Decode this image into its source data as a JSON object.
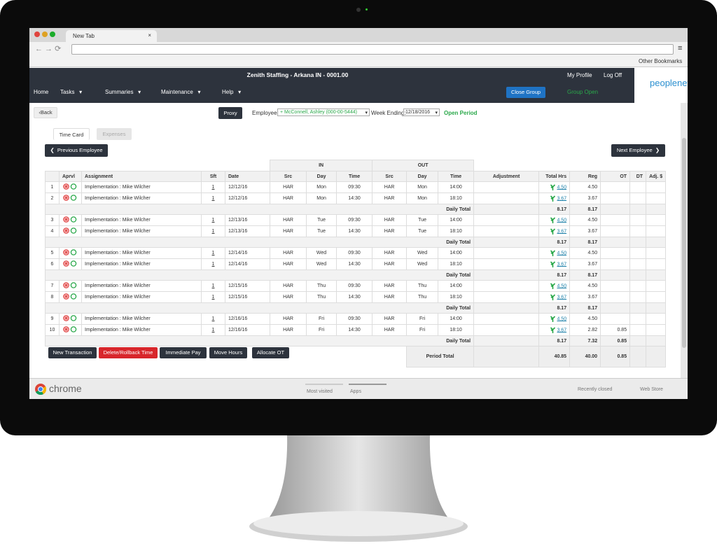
{
  "browser": {
    "tab": "New Tab",
    "bookmark": "Other Bookmarks",
    "footer": {
      "brand": "chrome",
      "most_visited": "Most visited",
      "apps": "Apps",
      "recently_closed": "Recently closed",
      "web_store": "Web Store"
    }
  },
  "header": {
    "title": "Zenith Staffing - Arkana IN - 0001.00",
    "my_profile": "My Profile",
    "log_off": "Log Off",
    "logo": "peoplenet",
    "nav": [
      "Home",
      "Tasks",
      "Summaries",
      "Maintenance",
      "Help"
    ],
    "close_group": "Close Group",
    "group_status": "Group Open"
  },
  "toolbar": {
    "back": "Back",
    "proxy": "Proxy",
    "employee_label": "Employee:",
    "employee": "McConnell, Ashley (000-00-5444)",
    "week_label": "Week Ending:",
    "week": "12/18/2016",
    "period_status": "Open Period"
  },
  "tabs": [
    "Time Card",
    "Expenses"
  ],
  "prev_employee": "Previous Employee",
  "next_employee": "Next Employee",
  "table": {
    "groups": [
      "IN",
      "OUT"
    ],
    "columns": [
      "Aprvl",
      "Assignment",
      "Sft",
      "Date",
      "Src",
      "Day",
      "Time",
      "Src",
      "Day",
      "Time",
      "Adjustment",
      "Total Hrs",
      "Reg",
      "OT",
      "DT",
      "Adj. $"
    ],
    "daily_total_label": "Daily Total",
    "days": [
      {
        "rows": [
          {
            "num": "1",
            "assignment": "Implementation : Mike Wilcher",
            "sft": "1",
            "date": "12/12/16",
            "in_src": "HAR",
            "in_day": "Mon",
            "in_time": "09:30",
            "out_src": "HAR",
            "out_day": "Mon",
            "out_time": "14:00",
            "total": "4.50",
            "reg": "4.50"
          },
          {
            "num": "2",
            "assignment": "Implementation : Mike Wilcher",
            "sft": "1",
            "date": "12/12/16",
            "in_src": "HAR",
            "in_day": "Mon",
            "in_time": "14:30",
            "out_src": "HAR",
            "out_day": "Mon",
            "out_time": "18:10",
            "total": "3.67",
            "reg": "3.67"
          }
        ],
        "daily_total": {
          "total": "8.17",
          "reg": "8.17"
        }
      },
      {
        "rows": [
          {
            "num": "3",
            "assignment": "Implementation : Mike Wilcher",
            "sft": "1",
            "date": "12/13/16",
            "in_src": "HAR",
            "in_day": "Tue",
            "in_time": "09:30",
            "out_src": "HAR",
            "out_day": "Tue",
            "out_time": "14:00",
            "total": "4.50",
            "reg": "4.50"
          },
          {
            "num": "4",
            "assignment": "Implementation : Mike Wilcher",
            "sft": "1",
            "date": "12/13/16",
            "in_src": "HAR",
            "in_day": "Tue",
            "in_time": "14:30",
            "out_src": "HAR",
            "out_day": "Tue",
            "out_time": "18:10",
            "total": "3.67",
            "reg": "3.67"
          }
        ],
        "daily_total": {
          "total": "8.17",
          "reg": "8.17"
        }
      },
      {
        "rows": [
          {
            "num": "5",
            "assignment": "Implementation : Mike Wilcher",
            "sft": "1",
            "date": "12/14/16",
            "in_src": "HAR",
            "in_day": "Wed",
            "in_time": "09:30",
            "out_src": "HAR",
            "out_day": "Wed",
            "out_time": "14:00",
            "total": "4.50",
            "reg": "4.50"
          },
          {
            "num": "6",
            "assignment": "Implementation : Mike Wilcher",
            "sft": "1",
            "date": "12/14/16",
            "in_src": "HAR",
            "in_day": "Wed",
            "in_time": "14:30",
            "out_src": "HAR",
            "out_day": "Wed",
            "out_time": "18:10",
            "total": "3.67",
            "reg": "3.67"
          }
        ],
        "daily_total": {
          "total": "8.17",
          "reg": "8.17"
        }
      },
      {
        "rows": [
          {
            "num": "7",
            "assignment": "Implementation : Mike Wilcher",
            "sft": "1",
            "date": "12/15/16",
            "in_src": "HAR",
            "in_day": "Thu",
            "in_time": "09:30",
            "out_src": "HAR",
            "out_day": "Thu",
            "out_time": "14:00",
            "total": "4.50",
            "reg": "4.50"
          },
          {
            "num": "8",
            "assignment": "Implementation : Mike Wilcher",
            "sft": "1",
            "date": "12/15/16",
            "in_src": "HAR",
            "in_day": "Thu",
            "in_time": "14:30",
            "out_src": "HAR",
            "out_day": "Thu",
            "out_time": "18:10",
            "total": "3.67",
            "reg": "3.67"
          }
        ],
        "daily_total": {
          "total": "8.17",
          "reg": "8.17"
        }
      },
      {
        "rows": [
          {
            "num": "9",
            "assignment": "Implementation : Mike Wilcher",
            "sft": "1",
            "date": "12/16/16",
            "in_src": "HAR",
            "in_day": "Fri",
            "in_time": "09:30",
            "out_src": "HAR",
            "out_day": "Fri",
            "out_time": "14:00",
            "total": "4.50",
            "reg": "4.50"
          },
          {
            "num": "10",
            "assignment": "Implementation : Mike Wilcher",
            "sft": "1",
            "date": "12/16/16",
            "in_src": "HAR",
            "in_day": "Fri",
            "in_time": "14:30",
            "out_src": "HAR",
            "out_day": "Fri",
            "out_time": "18:10",
            "total": "3.67",
            "reg": "2.82",
            "ot": "0.85"
          }
        ],
        "daily_total": {
          "total": "8.17",
          "reg": "7.32",
          "ot": "0.85"
        }
      }
    ],
    "period_total": {
      "label": "Period Total",
      "total": "40.85",
      "reg": "40.00",
      "ot": "0.85"
    }
  },
  "actions": [
    "New Transaction",
    "Delete/Rollback Time",
    "Immediate Pay",
    "Move Hours",
    "Allocate OT"
  ]
}
